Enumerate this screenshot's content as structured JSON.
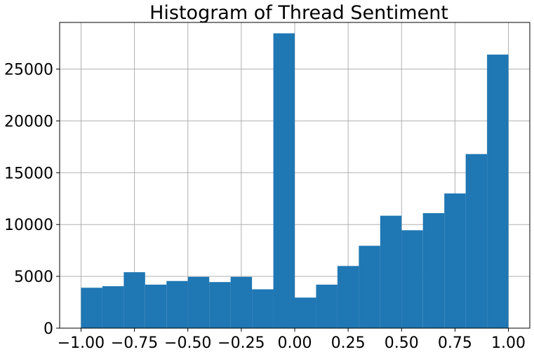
{
  "chart_data": {
    "type": "bar",
    "title": "Histogram of Thread Sentiment",
    "xlabel": "",
    "ylabel": "",
    "bin_edges": [
      -1.0,
      -0.9,
      -0.8,
      -0.7,
      -0.6,
      -0.5,
      -0.4,
      -0.3,
      -0.2,
      -0.1,
      0.0,
      0.1,
      0.2,
      0.3,
      0.4,
      0.5,
      0.6,
      0.7,
      0.8,
      0.9,
      1.0
    ],
    "values": [
      3900,
      4050,
      5400,
      4200,
      4550,
      4950,
      4450,
      4950,
      3750,
      28450,
      2950,
      4200,
      6000,
      7950,
      10850,
      9450,
      11100,
      13000,
      16800,
      26400
    ],
    "xlim": [
      -1.1,
      1.1
    ],
    "ylim": [
      0,
      29500
    ],
    "xticks": [
      -1.0,
      -0.75,
      -0.5,
      -0.25,
      0.0,
      0.25,
      0.5,
      0.75,
      1.0
    ],
    "xtick_labels": [
      "−1.00",
      "−0.75",
      "−0.50",
      "−0.25",
      "0.00",
      "0.25",
      "0.50",
      "0.75",
      "1.00"
    ],
    "yticks": [
      0,
      5000,
      10000,
      15000,
      20000,
      25000
    ],
    "ytick_labels": [
      "0",
      "5000",
      "10000",
      "15000",
      "20000",
      "25000"
    ],
    "grid": true,
    "bar_color": "#1f77b4"
  }
}
